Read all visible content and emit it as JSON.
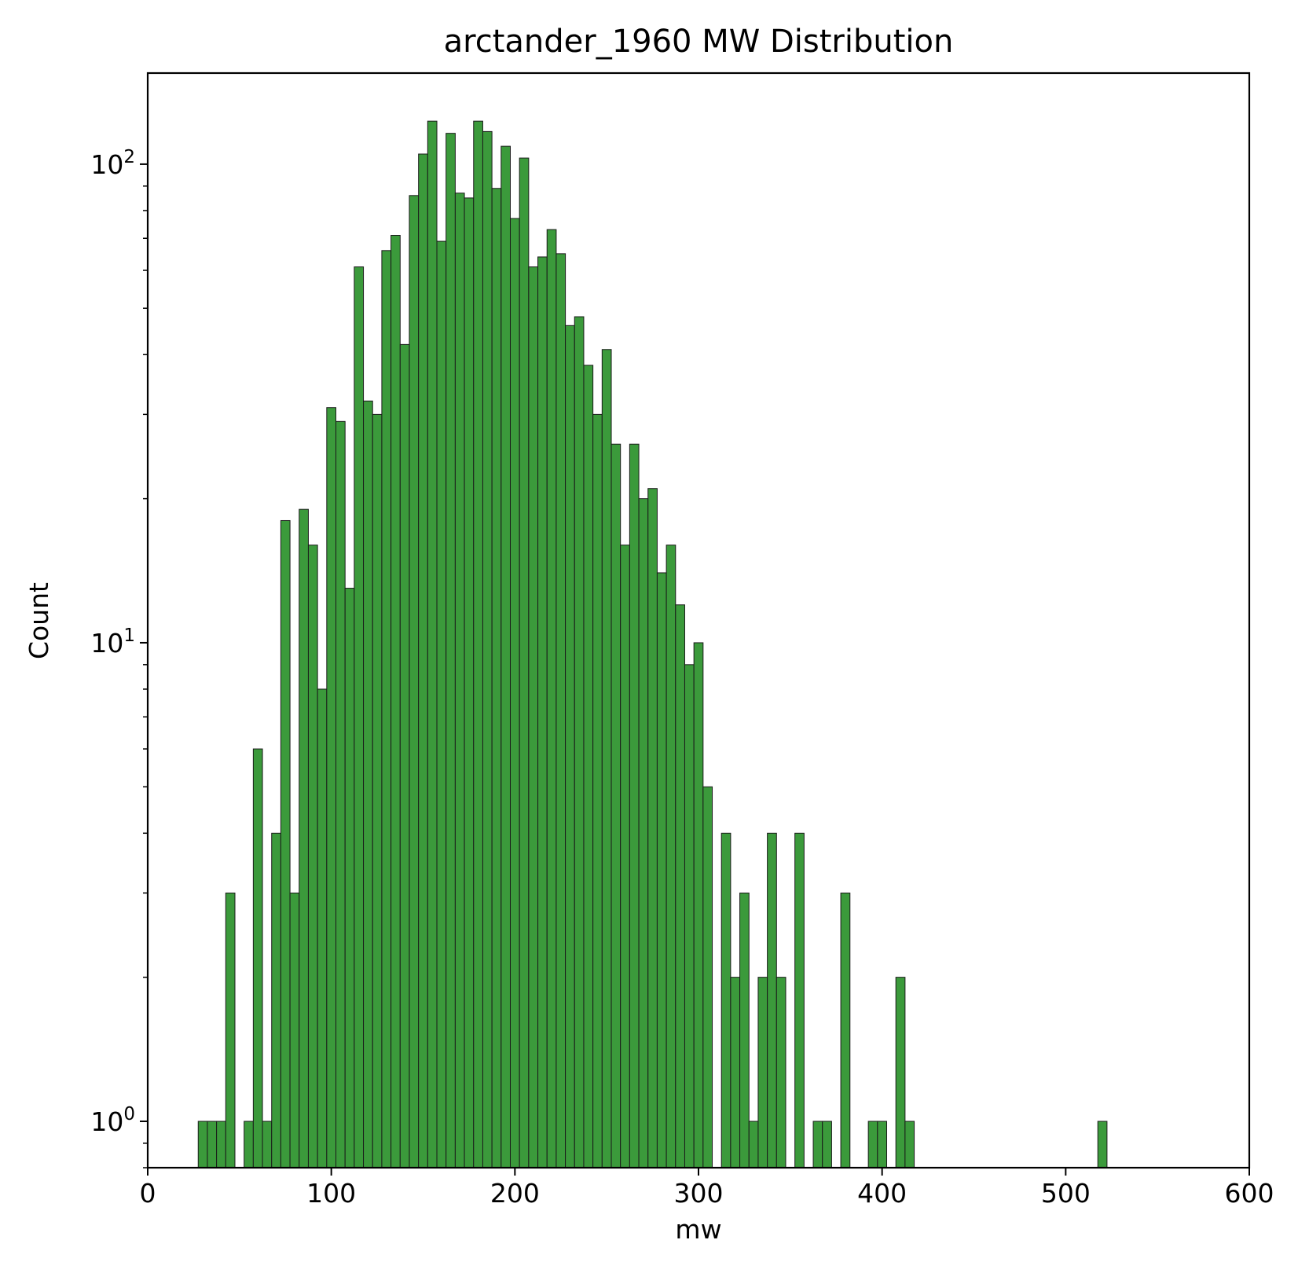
{
  "chart_data": {
    "type": "bar",
    "title": "arctander_1960 MW Distribution",
    "xlabel": "mw",
    "ylabel": "Count",
    "xlim": [
      0,
      600
    ],
    "ylim": [
      0.8,
      155
    ],
    "yscale": "log",
    "x_ticks": [
      "0",
      "100",
      "200",
      "300",
      "400",
      "500",
      "600"
    ],
    "y_ticks": [
      {
        "base": "10",
        "exp": "0"
      },
      {
        "base": "10",
        "exp": "1"
      },
      {
        "base": "10",
        "exp": "2"
      }
    ],
    "bar_color": "#3b9a3b",
    "edge_color": "#1a1a1a",
    "bin_width": 5,
    "bin_left_edges": [
      27.5,
      32.5,
      37.5,
      42.5,
      47.5,
      52.5,
      57.5,
      62.5,
      67.5,
      72.5,
      77.5,
      82.5,
      87.5,
      92.5,
      97.5,
      102.5,
      107.5,
      112.5,
      117.5,
      122.5,
      127.5,
      132.5,
      137.5,
      142.5,
      147.5,
      152.5,
      157.5,
      162.5,
      167.5,
      172.5,
      177.5,
      182.5,
      187.5,
      192.5,
      197.5,
      202.5,
      207.5,
      212.5,
      217.5,
      222.5,
      227.5,
      232.5,
      237.5,
      242.5,
      247.5,
      252.5,
      257.5,
      262.5,
      267.5,
      272.5,
      277.5,
      282.5,
      287.5,
      292.5,
      297.5,
      302.5,
      307.5,
      312.5,
      317.5,
      322.5,
      327.5,
      332.5,
      337.5,
      342.5,
      347.5,
      352.5,
      357.5,
      362.5,
      367.5,
      372.5,
      377.5,
      382.5,
      387.5,
      392.5,
      397.5,
      402.5,
      407.5,
      412.5,
      517.5
    ],
    "counts": [
      1,
      1,
      1,
      3,
      0,
      1,
      6,
      1,
      4,
      18,
      3,
      19,
      16,
      8,
      31,
      29,
      13,
      61,
      32,
      30,
      66,
      71,
      42,
      86,
      105,
      123,
      69,
      116,
      87,
      85,
      123,
      117,
      89,
      109,
      77,
      103,
      61,
      64,
      73,
      65,
      46,
      48,
      38,
      30,
      41,
      26,
      16,
      26,
      20,
      21,
      14,
      16,
      12,
      9,
      10,
      5,
      0,
      4,
      2,
      3,
      1,
      2,
      4,
      2,
      0,
      4,
      0,
      1,
      1,
      0,
      3,
      0,
      0,
      1,
      1,
      0,
      2,
      1,
      1
    ]
  }
}
